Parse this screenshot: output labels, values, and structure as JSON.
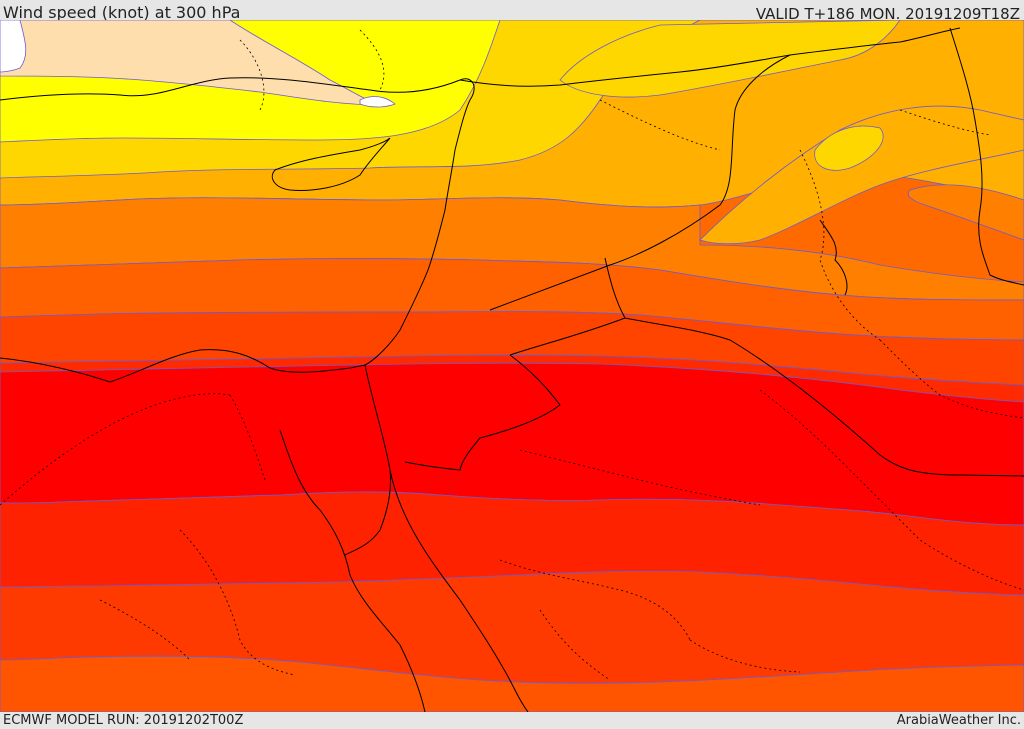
{
  "header": {
    "title": "Wind speed (knot) at 300 hPa",
    "valid": "VALID T+186 MON. 20191209T18Z"
  },
  "footer": {
    "model_run": "ECMWF MODEL RUN: 20191202T00Z",
    "credit": "ArabiaWeather Inc."
  },
  "map": {
    "variable": "wind speed",
    "unit": "knot",
    "level": "300 hPa",
    "colors": {
      "white": "#ffffff",
      "pale": "#ffdead",
      "yellow": "#ffff00",
      "gold": "#ffd700",
      "orange_light": "#ffb000",
      "orange": "#ff9500",
      "orange_dark": "#ff7f00",
      "red_orange": "#ff6000",
      "red_light": "#ff4400",
      "red_mid": "#ff2a00",
      "red": "#ff0000",
      "isotach_line": "#6b5bd6",
      "border_line": "#000000"
    }
  }
}
